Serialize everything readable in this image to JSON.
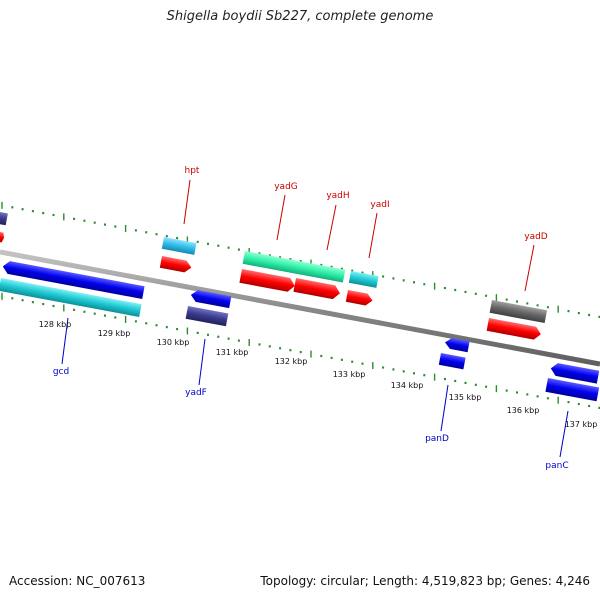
{
  "title": "Shigella boydii Sb227, complete genome",
  "footer": {
    "accession": "Accession: NC_007613",
    "summary": "Topology: circular; Length: 4,519,823 bp; Genes: 4,246"
  },
  "colors": {
    "backbone": "#8a8a8a",
    "tick": "#2e8b2e",
    "gene_label_forward": "#cc0000",
    "gene_label_reverse": "#0000cc",
    "gene_forward": "#ff0000",
    "gene_reverse": "#0000ee",
    "cds_cyan": "#1ec8d2",
    "cds_light_blue": "#2ebde8",
    "cds_green": "#2ef0a8",
    "cds_dark_navy": "#3a3a8c",
    "cds_gray": "#666666"
  },
  "scale": {
    "ticks": [
      {
        "label": "128 kbp"
      },
      {
        "label": "129 kbp"
      },
      {
        "label": "130 kbp"
      },
      {
        "label": "131 kbp"
      },
      {
        "label": "132 kbp"
      },
      {
        "label": "133 kbp"
      },
      {
        "label": "134 kbp"
      },
      {
        "label": "135 kbp"
      },
      {
        "label": "136 kbp"
      },
      {
        "label": "137 kbp"
      }
    ]
  },
  "genes": [
    {
      "label": "hpt",
      "strand": "forward"
    },
    {
      "label": "yadG",
      "strand": "forward"
    },
    {
      "label": "yadH",
      "strand": "forward"
    },
    {
      "label": "yadI",
      "strand": "forward"
    },
    {
      "label": "yadD",
      "strand": "forward"
    },
    {
      "label": "gcd",
      "strand": "reverse"
    },
    {
      "label": "yadF",
      "strand": "reverse"
    },
    {
      "label": "panD",
      "strand": "reverse"
    },
    {
      "label": "panC",
      "strand": "reverse"
    }
  ]
}
